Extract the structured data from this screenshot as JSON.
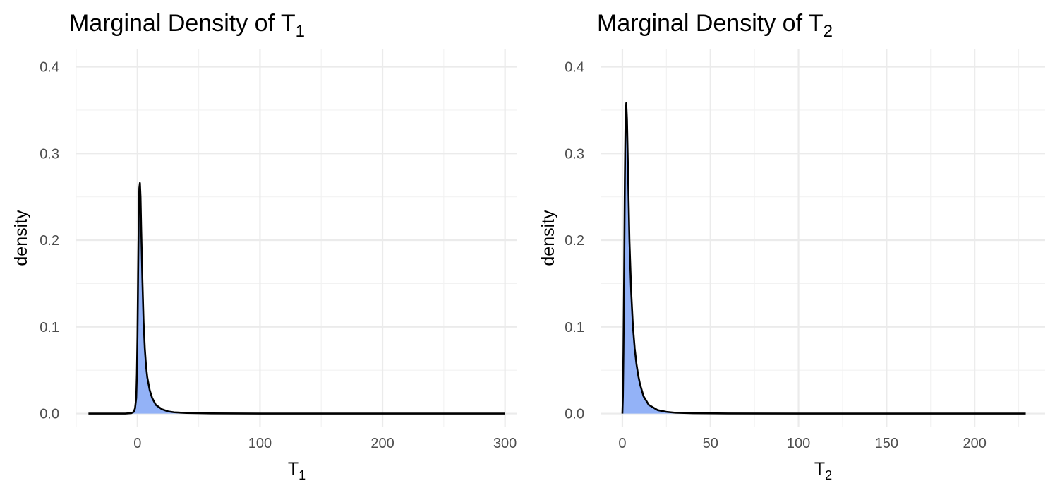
{
  "colors": {
    "fill": "#93b2f7",
    "line": "#000000",
    "grid": "#ebebeb",
    "tick_text": "#4d4d4d"
  },
  "chart_data": [
    {
      "type": "area",
      "title": "Marginal Density of T",
      "title_sub": "1",
      "xlabel": "T",
      "xlabel_sub": "1",
      "ylabel": "density",
      "xlim": [
        -50,
        310
      ],
      "ylim": [
        -0.015,
        0.42
      ],
      "x_ticks": [
        0,
        100,
        200,
        300
      ],
      "x_tick_labels": [
        "0",
        "100",
        "200",
        "300"
      ],
      "y_ticks": [
        0.0,
        0.1,
        0.2,
        0.3,
        0.4
      ],
      "y_tick_labels": [
        "0.0",
        "0.1",
        "0.2",
        "0.3",
        "0.4"
      ],
      "grid": true,
      "series": [
        {
          "x": [
            -40,
            -10,
            -5,
            -3,
            -2,
            -1,
            -0.5,
            0,
            0.5,
            1,
            1.5,
            2,
            2.5,
            3,
            4,
            5,
            6,
            7,
            8,
            10,
            12,
            15,
            20,
            25,
            30,
            40,
            60,
            100,
            200,
            300
          ],
          "y": [
            0.0,
            0.0,
            0.0005,
            0.002,
            0.006,
            0.018,
            0.045,
            0.09,
            0.16,
            0.225,
            0.26,
            0.266,
            0.25,
            0.215,
            0.155,
            0.105,
            0.075,
            0.055,
            0.042,
            0.027,
            0.018,
            0.01,
            0.005,
            0.0025,
            0.0015,
            0.0007,
            0.0002,
            0.0,
            0.0,
            0.0
          ]
        }
      ]
    },
    {
      "type": "area",
      "title": "Marginal Density of T",
      "title_sub": "2",
      "xlabel": "T",
      "xlabel_sub": "2",
      "ylabel": "density",
      "xlim": [
        -12,
        240
      ],
      "ylim": [
        -0.015,
        0.42
      ],
      "x_ticks": [
        0,
        50,
        100,
        150,
        200
      ],
      "x_tick_labels": [
        "0",
        "50",
        "100",
        "150",
        "200"
      ],
      "y_ticks": [
        0.0,
        0.1,
        0.2,
        0.3,
        0.4
      ],
      "y_tick_labels": [
        "0.0",
        "0.1",
        "0.2",
        "0.3",
        "0.4"
      ],
      "grid": true,
      "series": [
        {
          "x": [
            0,
            0.3,
            0.6,
            1,
            1.4,
            1.8,
            2.2,
            2.6,
            3,
            3.5,
            4,
            5,
            6,
            7,
            8,
            9,
            10,
            12,
            15,
            20,
            25,
            30,
            40,
            60,
            100,
            150,
            200,
            229
          ],
          "y": [
            0.0,
            0.02,
            0.07,
            0.16,
            0.27,
            0.34,
            0.358,
            0.34,
            0.3,
            0.25,
            0.2,
            0.14,
            0.1,
            0.075,
            0.057,
            0.044,
            0.034,
            0.02,
            0.01,
            0.004,
            0.002,
            0.001,
            0.0004,
            0.0001,
            0.0,
            0.0,
            0.0,
            0.0
          ]
        }
      ]
    }
  ]
}
